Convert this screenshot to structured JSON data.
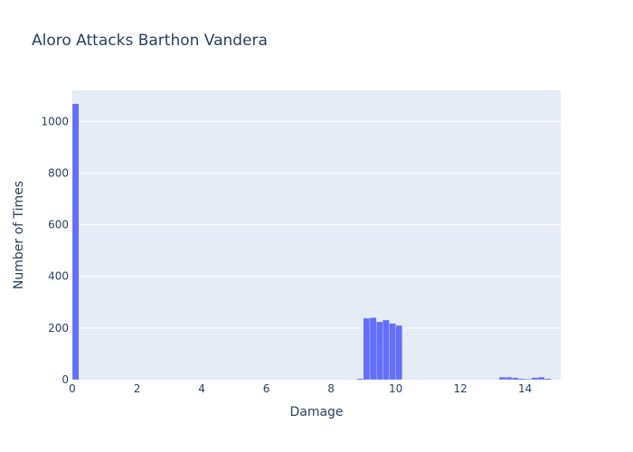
{
  "chart_data": {
    "type": "bar",
    "title": "Aloro Attacks Barthon Vandera",
    "xlabel": "Damage",
    "ylabel": "Number of Times",
    "xlim": [
      0,
      15.1
    ],
    "ylim": [
      0,
      1120
    ],
    "x_ticks": [
      0,
      2,
      4,
      6,
      8,
      10,
      12,
      14
    ],
    "y_ticks": [
      0,
      200,
      400,
      600,
      800,
      1000
    ],
    "bin_width": 0.2,
    "color": "#636efa",
    "plot_background": "#e5ecf6",
    "grid": true,
    "bins": [
      {
        "x0": 0.0,
        "value": 1068
      },
      {
        "x0": 8.8,
        "value": 4
      },
      {
        "x0": 9.0,
        "value": 238
      },
      {
        "x0": 9.2,
        "value": 240
      },
      {
        "x0": 9.4,
        "value": 224
      },
      {
        "x0": 9.6,
        "value": 231
      },
      {
        "x0": 9.8,
        "value": 218
      },
      {
        "x0": 10.0,
        "value": 210
      },
      {
        "x0": 13.2,
        "value": 10
      },
      {
        "x0": 13.4,
        "value": 10
      },
      {
        "x0": 13.6,
        "value": 8
      },
      {
        "x0": 13.8,
        "value": 4
      },
      {
        "x0": 14.0,
        "value": 3
      },
      {
        "x0": 14.2,
        "value": 8
      },
      {
        "x0": 14.4,
        "value": 10
      },
      {
        "x0": 14.6,
        "value": 4
      }
    ]
  }
}
